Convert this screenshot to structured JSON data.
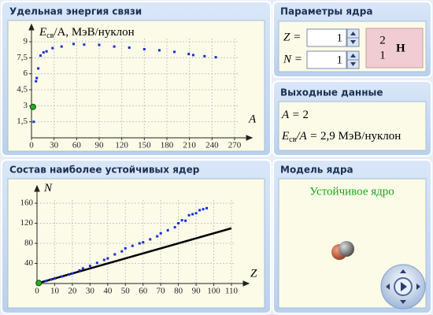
{
  "panels": {
    "energy": {
      "title": "Удельная энергия связи"
    },
    "params": {
      "title": "Параметры ядра",
      "z_label": "Z =",
      "z_value": 1,
      "n_label": "N =",
      "n_value": 1,
      "element": {
        "mass": 2,
        "number": 1,
        "symbol": "H"
      }
    },
    "output": {
      "title": "Выходные данные",
      "a_label": "A =",
      "a_value": 2,
      "e_main": "E",
      "e_sub": "св",
      "e_rest": "/A =",
      "e_value": "2,9",
      "e_unit": "МэВ/нуклон"
    },
    "stable": {
      "title": "Состав наиболее устойчивых ядер"
    },
    "model": {
      "title": "Модель ядра",
      "status": "Устойчивое ядро"
    }
  },
  "chart_data": [
    {
      "type": "scatter",
      "y_label": {
        "main": "E",
        "sub": "св",
        "rest": "/A, МэВ/нуклон"
      },
      "x_label": "A",
      "xlim": [
        0,
        270
      ],
      "ylim": [
        0,
        9
      ],
      "xticks": [
        0,
        30,
        60,
        90,
        120,
        150,
        180,
        210,
        240,
        270
      ],
      "yticks": [
        {
          "value": 1.5,
          "label": "1,5"
        },
        3,
        {
          "value": 4.5,
          "label": "4,5"
        },
        6,
        {
          "value": 7.5,
          "label": "7,5"
        },
        9
      ],
      "grid": true,
      "series": [
        {
          "color": "#1a2fd6",
          "marker": "square",
          "x": [
            3,
            6,
            7,
            9,
            12,
            16,
            20,
            28,
            40,
            56,
            70,
            90,
            110,
            130,
            150,
            170,
            190,
            209,
            215,
            230,
            245
          ],
          "values": [
            1.5,
            5.3,
            5.6,
            6.5,
            7.7,
            8.0,
            8.1,
            8.4,
            8.55,
            8.79,
            8.73,
            8.7,
            8.55,
            8.45,
            8.3,
            8.2,
            8.05,
            7.85,
            7.75,
            7.65,
            7.55
          ]
        },
        {
          "color": "#22b022",
          "marker": "circle",
          "x": [
            2
          ],
          "values": [
            2.9
          ]
        }
      ]
    },
    {
      "type": "scatter",
      "y_label": {
        "main": "N"
      },
      "x_label": "Z",
      "xlim": [
        0,
        110
      ],
      "ylim": [
        0,
        160
      ],
      "xticks": [
        0,
        10,
        20,
        30,
        40,
        50,
        60,
        70,
        80,
        90,
        100,
        110
      ],
      "yticks": [
        40,
        80,
        120,
        160
      ],
      "grid": true,
      "series": [
        {
          "color": "#000000",
          "marker": "line",
          "x": [
            0,
            110
          ],
          "values": [
            0,
            110
          ]
        },
        {
          "color": "#1a2fd6",
          "marker": "square",
          "x": [
            2,
            5,
            8,
            10,
            14,
            18,
            20,
            24,
            26,
            30,
            34,
            38,
            40,
            44,
            48,
            50,
            54,
            58,
            60,
            64,
            68,
            70,
            74,
            78,
            80,
            82,
            84,
            86,
            88,
            90,
            92,
            94,
            96
          ],
          "values": [
            2,
            5,
            8,
            10,
            14,
            18,
            20,
            26,
            30,
            35,
            41,
            47,
            50,
            58,
            64,
            70,
            75,
            80,
            82,
            88,
            94,
            100,
            106,
            112,
            120,
            126,
            125,
            136,
            138,
            140,
            146,
            148,
            150
          ]
        },
        {
          "color": "#22b022",
          "marker": "circle",
          "x": [
            1
          ],
          "values": [
            1
          ]
        }
      ]
    }
  ]
}
